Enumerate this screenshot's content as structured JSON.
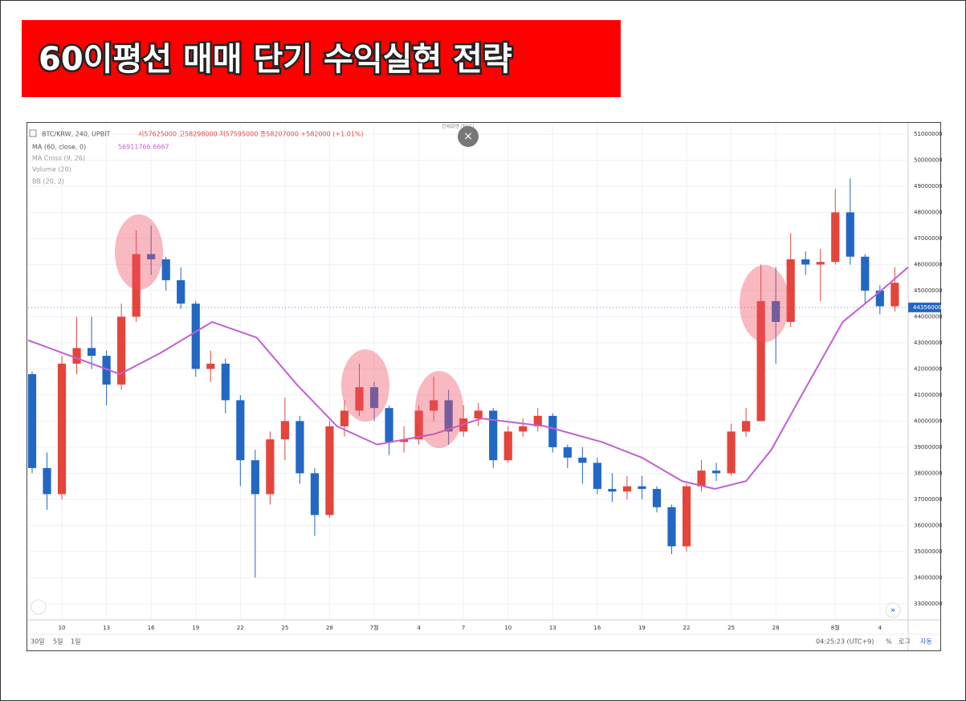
{
  "header": {
    "title": "60이평선 매매 단기 수익실현 전략"
  },
  "chart_data": {
    "type": "candlestick",
    "symbol": "BTC/KRW, 240, UPBIT",
    "ohlc_text": "시57625000 고58298000 저57595000 종58207000 +582000 (+1.01%)",
    "indicators": [
      {
        "label": "MA (60, close, 0)",
        "value": 56911766.6667
      },
      {
        "label": "MA Cross (9, 26)"
      },
      {
        "label": "Volume (20)"
      },
      {
        "label": "BB (20, 2)"
      }
    ],
    "tooltip": "전체화면 (ESC)",
    "up_color": "#e5443b",
    "down_color": "#2367c4",
    "grid": true,
    "x": [
      8,
      9,
      10,
      11,
      12,
      13,
      14,
      15,
      16,
      17,
      18,
      19,
      20,
      21,
      22,
      23,
      24,
      25,
      26,
      27,
      28,
      29,
      30,
      31,
      32,
      33,
      34,
      35,
      36,
      37,
      38,
      39,
      40,
      41,
      42,
      43,
      44,
      45,
      46,
      47,
      48,
      49,
      50,
      51,
      52,
      53,
      54,
      55,
      56,
      57,
      58,
      59,
      60,
      61,
      62,
      63,
      64,
      65,
      66
    ],
    "open": [
      41800000,
      38200000,
      37200000,
      42200000,
      42800000,
      42500000,
      41400000,
      44000000,
      46400000,
      46200000,
      45400000,
      44500000,
      42000000,
      42200000,
      40800000,
      38500000,
      37200000,
      39300000,
      40000000,
      38000000,
      36400000,
      39800000,
      40400000,
      41300000,
      40500000,
      39200000,
      39300000,
      40400000,
      40800000,
      39600000,
      40100000,
      40400000,
      38500000,
      39600000,
      39800000,
      40200000,
      39000000,
      38600000,
      38400000,
      37400000,
      37300000,
      37500000,
      37400000,
      36700000,
      35200000,
      37500000,
      38100000,
      38000000,
      39600000,
      40000000,
      44600000,
      43800000,
      46200000,
      46000000,
      46100000,
      48000000,
      46300000,
      45000000,
      44400000
    ],
    "high": [
      41900000,
      38800000,
      42500000,
      44000000,
      44000000,
      42700000,
      44500000,
      47300000,
      47500000,
      46300000,
      45900000,
      44600000,
      42700000,
      42400000,
      41000000,
      38900000,
      39600000,
      40900000,
      40200000,
      38200000,
      40000000,
      40800000,
      42200000,
      41500000,
      40600000,
      39800000,
      40600000,
      41700000,
      41200000,
      40600000,
      40700000,
      40500000,
      39800000,
      40100000,
      40500000,
      40300000,
      39100000,
      39000000,
      38600000,
      38000000,
      37900000,
      37900000,
      37500000,
      36800000,
      37600000,
      38500000,
      38400000,
      39900000,
      40500000,
      46000000,
      45900000,
      47200000,
      46500000,
      46600000,
      48900000,
      49300000,
      46400000,
      45200000,
      45900000
    ],
    "low": [
      38000000,
      36600000,
      37000000,
      41800000,
      42000000,
      40600000,
      41200000,
      43800000,
      45600000,
      45000000,
      44300000,
      41700000,
      41500000,
      40300000,
      37500000,
      34000000,
      36800000,
      38500000,
      37600000,
      35600000,
      36300000,
      39400000,
      40200000,
      40000000,
      38700000,
      38800000,
      39100000,
      40000000,
      39100000,
      39400000,
      39800000,
      38200000,
      38400000,
      39400000,
      39600000,
      38800000,
      38200000,
      37600000,
      37200000,
      36900000,
      37000000,
      37000000,
      36500000,
      34900000,
      35000000,
      37300000,
      37700000,
      37900000,
      39400000,
      40000000,
      42200000,
      43600000,
      45600000,
      44600000,
      46000000,
      46000000,
      44500000,
      44100000,
      44200000
    ],
    "close": [
      38200000,
      37200000,
      42200000,
      42800000,
      42500000,
      41400000,
      44000000,
      46400000,
      46200000,
      45400000,
      44500000,
      42000000,
      42200000,
      40800000,
      38500000,
      37200000,
      39300000,
      40000000,
      38000000,
      36400000,
      39800000,
      40400000,
      41300000,
      40500000,
      39200000,
      39300000,
      40400000,
      40800000,
      39600000,
      40100000,
      40400000,
      38500000,
      39600000,
      39800000,
      40200000,
      39000000,
      38600000,
      38400000,
      37400000,
      37300000,
      37500000,
      37400000,
      36700000,
      35200000,
      37500000,
      38100000,
      38000000,
      39600000,
      40000000,
      44600000,
      43800000,
      46200000,
      46000000,
      46100000,
      48000000,
      46300000,
      45000000,
      44400000,
      45300000
    ],
    "ma": {
      "color": "#c35fd2",
      "x": [
        7.73,
        13.9,
        16.6,
        20.1,
        23.1,
        25.8,
        28.5,
        31.2,
        35,
        38.2,
        42.5,
        46.3,
        49,
        51.7,
        53.9,
        56,
        57.7,
        59.8,
        62.5,
        65.2,
        66.9
      ],
      "values": [
        43100000,
        41800000,
        42600000,
        43800000,
        43200000,
        41400000,
        39800000,
        39100000,
        39500000,
        40100000,
        39800000,
        39200000,
        38600000,
        37700000,
        37400000,
        37700000,
        38900000,
        41060000,
        43800000,
        45060000,
        45900000
      ]
    },
    "last_price": 44356000,
    "xlim": [
      7.73,
      66.9
    ],
    "xticks": [
      10,
      13,
      16,
      19,
      22,
      25,
      28,
      {
        "value": 31,
        "label": "7월"
      },
      {
        "value": 34,
        "label": "4"
      },
      {
        "value": 37,
        "label": "7"
      },
      {
        "value": 40,
        "label": "10"
      },
      {
        "value": 43,
        "label": "13"
      },
      {
        "value": 46,
        "label": "16"
      },
      {
        "value": 49,
        "label": "19"
      },
      {
        "value": 52,
        "label": "22"
      },
      {
        "value": 55,
        "label": "25"
      },
      {
        "value": 58,
        "label": "28"
      },
      {
        "value": 62,
        "label": "8월"
      },
      {
        "value": 65,
        "label": "4"
      }
    ],
    "ylim": [
      32380000,
      51430000
    ],
    "yticks": [
      33000000,
      34000000,
      35000000,
      36000000,
      37000000,
      38000000,
      39000000,
      40000000,
      41000000,
      42000000,
      43000000,
      44000000,
      45000000,
      46000000,
      47000000,
      48000000,
      49000000,
      50000000,
      51000000
    ],
    "range_buttons": [
      "30일",
      "5일",
      "1일"
    ],
    "time": "04:25:23 (UTC+9)",
    "scale_buttons": [
      "%",
      "로그",
      "자동"
    ]
  }
}
